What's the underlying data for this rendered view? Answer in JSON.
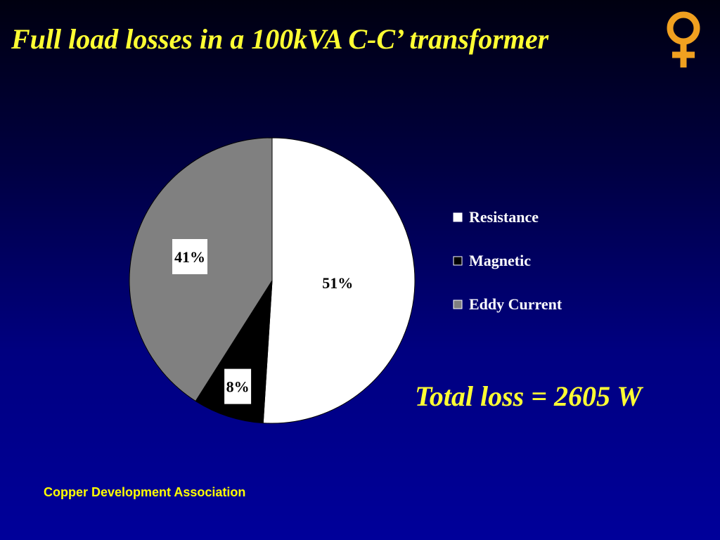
{
  "slide": {
    "title": "Full load losses in a 100kVA C-C’ transformer",
    "total_loss": "Total loss = 2605 W",
    "footer": "Copper Development Association",
    "logo_icon": "venus-symbol-icon"
  },
  "colors": {
    "title_text": "#ffff33",
    "footer_text": "#ffff00",
    "logo": "#f0a020",
    "background_top": "#000010",
    "background_bottom": "#00009a"
  },
  "chart_data": {
    "type": "pie",
    "title": "",
    "start_angle_deg": 0,
    "direction": "clockwise",
    "legend_position": "right",
    "slices": [
      {
        "name": "Resistance",
        "value": 51,
        "label": "51%",
        "color": "#ffffff",
        "label_box": false
      },
      {
        "name": "Magnetic",
        "value": 8,
        "label": "8%",
        "color": "#000000",
        "label_box": true
      },
      {
        "name": "Eddy Current",
        "value": 41,
        "label": "41%",
        "color": "#808080",
        "label_box": true
      }
    ]
  }
}
